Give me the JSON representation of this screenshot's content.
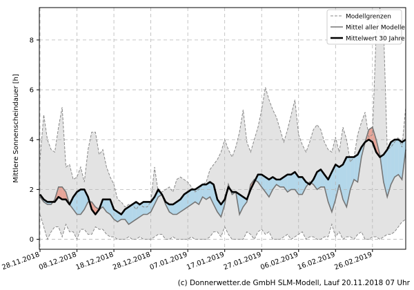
{
  "chart_data": {
    "type": "area",
    "ylabel": "Mittlere Sonnenscheindauer [h]",
    "ylim": [
      -0.4,
      9.3
    ],
    "yticks": [
      0,
      2,
      4,
      6,
      8
    ],
    "grid": true,
    "legend_position": "top-right",
    "x_start": "2018-11-28",
    "xticks": [
      "28.11.2018",
      "08.12.2018",
      "18.12.2018",
      "28.12.2018",
      "07.01.2019",
      "17.01.2019",
      "27.01.2019",
      "06.02.2019",
      "16.02.2019",
      "26.02.2019"
    ],
    "legend": [
      {
        "label": "Modellgrenzen",
        "style": "dashed-gray"
      },
      {
        "label": "Mittel aller Modelle",
        "style": "solid-gray"
      },
      {
        "label": "Mittelwert 30 Jahre",
        "style": "solid-black"
      }
    ],
    "colors": {
      "range_fill": "#e3e3e3",
      "range_line": "#888888",
      "mean_line": "#757575",
      "clim_line": "#000000",
      "above_clim": "#e8a598",
      "below_clim": "#b3d7ea"
    },
    "series": [
      {
        "name": "Modellgrenzen (max)",
        "values": [
          3.2,
          5.0,
          4.0,
          3.6,
          3.5,
          4.5,
          5.3,
          2.9,
          3.0,
          2.4,
          2.5,
          2.9,
          2.3,
          3.6,
          4.3,
          4.3,
          3.4,
          3.6,
          2.9,
          2.5,
          2.2,
          1.6,
          1.5,
          1.3,
          1.4,
          1.4,
          1.2,
          1.4,
          1.3,
          1.3,
          1.5,
          2.9,
          1.9,
          1.9,
          2.0,
          2.1,
          1.9,
          2.4,
          2.5,
          2.4,
          2.3,
          2.1,
          1.9,
          2.0,
          2.2,
          2.3,
          2.8,
          3.0,
          3.2,
          3.5,
          4.0,
          3.6,
          3.3,
          3.7,
          4.3,
          5.2,
          3.9,
          3.5,
          4.0,
          4.5,
          5.2,
          6.1,
          5.6,
          5.2,
          4.9,
          4.4,
          3.9,
          4.4,
          5.0,
          5.6,
          4.2,
          3.8,
          3.5,
          3.9,
          4.4,
          4.6,
          4.4,
          3.9,
          3.6,
          3.5,
          4.1,
          3.5,
          4.5,
          4.0,
          3.1,
          3.3,
          4.2,
          4.7,
          5.1,
          4.1,
          4.2,
          8.3,
          9.3,
          8.5,
          3.6,
          3.7,
          3.9,
          4.1,
          3.7,
          5.3
        ]
      },
      {
        "name": "Modellgrenzen (min)",
        "values": [
          1.0,
          0.5,
          0.0,
          0.3,
          0.5,
          0.5,
          0.1,
          0.6,
          0.3,
          0.3,
          0.0,
          0.4,
          0.4,
          0.2,
          0.2,
          0.5,
          0.4,
          0.4,
          0.2,
          0.1,
          0.1,
          0.0,
          0.0,
          0.0,
          0.1,
          0.0,
          0.0,
          0.1,
          0.0,
          0.0,
          0.0,
          0.1,
          0.2,
          0.2,
          0.0,
          0.0,
          0.1,
          0.0,
          0.0,
          0.0,
          0.0,
          0.1,
          0.0,
          0.0,
          0.0,
          0.0,
          0.1,
          0.3,
          0.3,
          0.1,
          0.5,
          0.2,
          0.0,
          0.0,
          0.0,
          0.0,
          0.3,
          0.2,
          0.0,
          0.3,
          0.4,
          0.2,
          0.3,
          0.0,
          0.0,
          0.0,
          0.1,
          0.2,
          0.0,
          0.1,
          0.2,
          0.3,
          0.0,
          0.1,
          0.1,
          0.0,
          0.0,
          0.1,
          0.1,
          0.6,
          0.1,
          0.3,
          0.0,
          0.1,
          0.1,
          0.0,
          0.2,
          0.3,
          0.0,
          0.0,
          0.1,
          0.1,
          0.0,
          0.1,
          0.2,
          0.2,
          0.3,
          0.5,
          0.7,
          0.8
        ]
      },
      {
        "name": "Mittel aller Modelle",
        "values": [
          1.7,
          1.5,
          1.4,
          1.4,
          1.6,
          2.1,
          2.1,
          1.9,
          1.4,
          1.2,
          1.0,
          1.0,
          1.2,
          1.5,
          1.5,
          1.3,
          1.2,
          1.3,
          1.1,
          1.0,
          0.8,
          0.7,
          0.8,
          0.8,
          0.6,
          0.7,
          0.8,
          0.9,
          1.0,
          1.0,
          1.1,
          1.4,
          1.7,
          1.8,
          1.4,
          1.1,
          1.0,
          1.0,
          1.1,
          1.2,
          1.3,
          1.4,
          1.5,
          1.4,
          1.7,
          1.6,
          1.7,
          1.4,
          1.1,
          0.9,
          1.4,
          2.2,
          1.8,
          1.9,
          1.0,
          1.3,
          1.5,
          2.2,
          2.4,
          2.3,
          2.1,
          1.9,
          1.7,
          2.0,
          2.2,
          2.1,
          2.1,
          1.9,
          2.0,
          2.0,
          1.8,
          1.8,
          2.1,
          2.3,
          2.2,
          2.0,
          2.1,
          2.1,
          1.5,
          1.1,
          1.6,
          2.2,
          1.6,
          1.3,
          2.0,
          2.4,
          2.3,
          3.3,
          3.9,
          4.4,
          4.5,
          4.0,
          3.4,
          2.3,
          1.7,
          2.2,
          2.5,
          2.6,
          2.4,
          3.6
        ]
      },
      {
        "name": "Mittelwert 30 Jahre",
        "values": [
          1.8,
          1.6,
          1.5,
          1.5,
          1.5,
          1.7,
          1.6,
          1.6,
          1.4,
          1.7,
          1.9,
          2.0,
          2.0,
          1.7,
          1.2,
          1.0,
          1.2,
          1.6,
          1.6,
          1.6,
          1.2,
          1.1,
          1.0,
          1.2,
          1.3,
          1.4,
          1.5,
          1.4,
          1.5,
          1.5,
          1.5,
          1.7,
          2.0,
          1.8,
          1.5,
          1.4,
          1.4,
          1.5,
          1.6,
          1.8,
          1.9,
          2.0,
          2.0,
          2.1,
          2.2,
          2.2,
          2.3,
          2.2,
          1.6,
          1.4,
          1.6,
          2.1,
          1.9,
          1.9,
          1.8,
          1.7,
          1.6,
          2.0,
          2.3,
          2.6,
          2.6,
          2.5,
          2.4,
          2.5,
          2.4,
          2.4,
          2.5,
          2.6,
          2.6,
          2.7,
          2.5,
          2.5,
          2.3,
          2.2,
          2.4,
          2.7,
          2.8,
          2.6,
          2.4,
          2.7,
          3.0,
          2.9,
          3.0,
          3.3,
          3.3,
          3.3,
          3.4,
          3.7,
          3.9,
          4.0,
          3.9,
          3.5,
          3.3,
          3.4,
          3.6,
          3.9,
          4.0,
          4.0,
          3.9,
          4.0
        ]
      }
    ]
  },
  "credit": "(c) Donnerwetter.de GmbH SLM-Modell, Lauf 20.11.2018 07 Uhr"
}
